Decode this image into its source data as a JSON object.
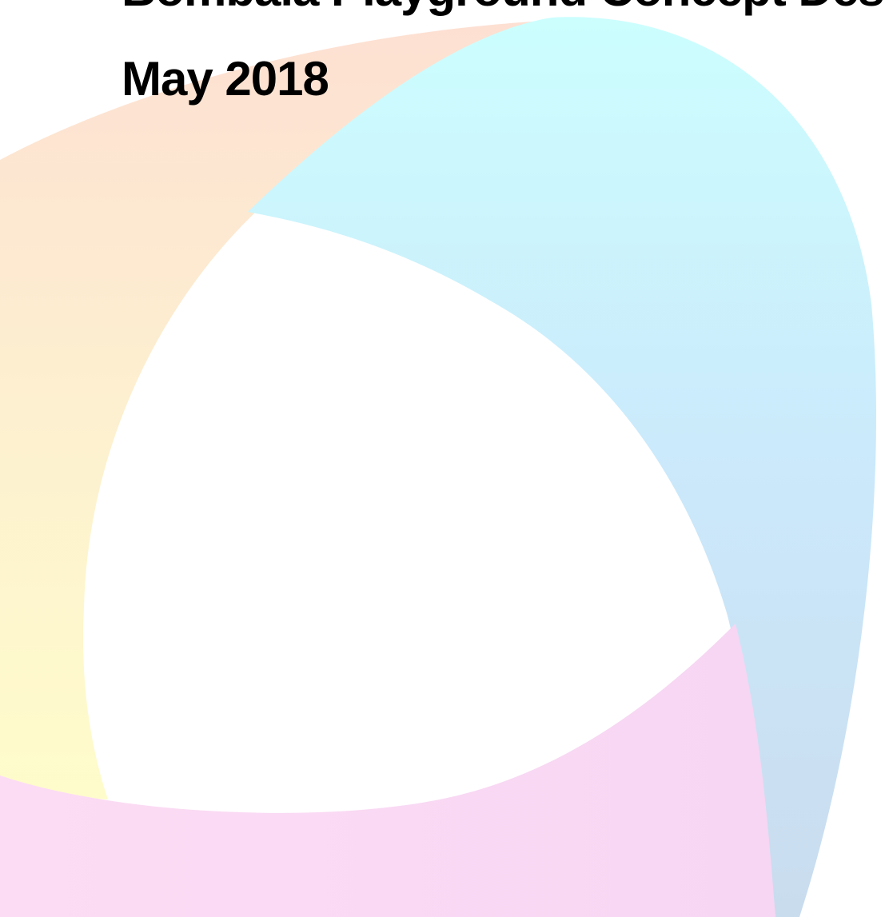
{
  "header": {
    "title": "Bombala Playground Concept Des",
    "date": "May 2018"
  }
}
